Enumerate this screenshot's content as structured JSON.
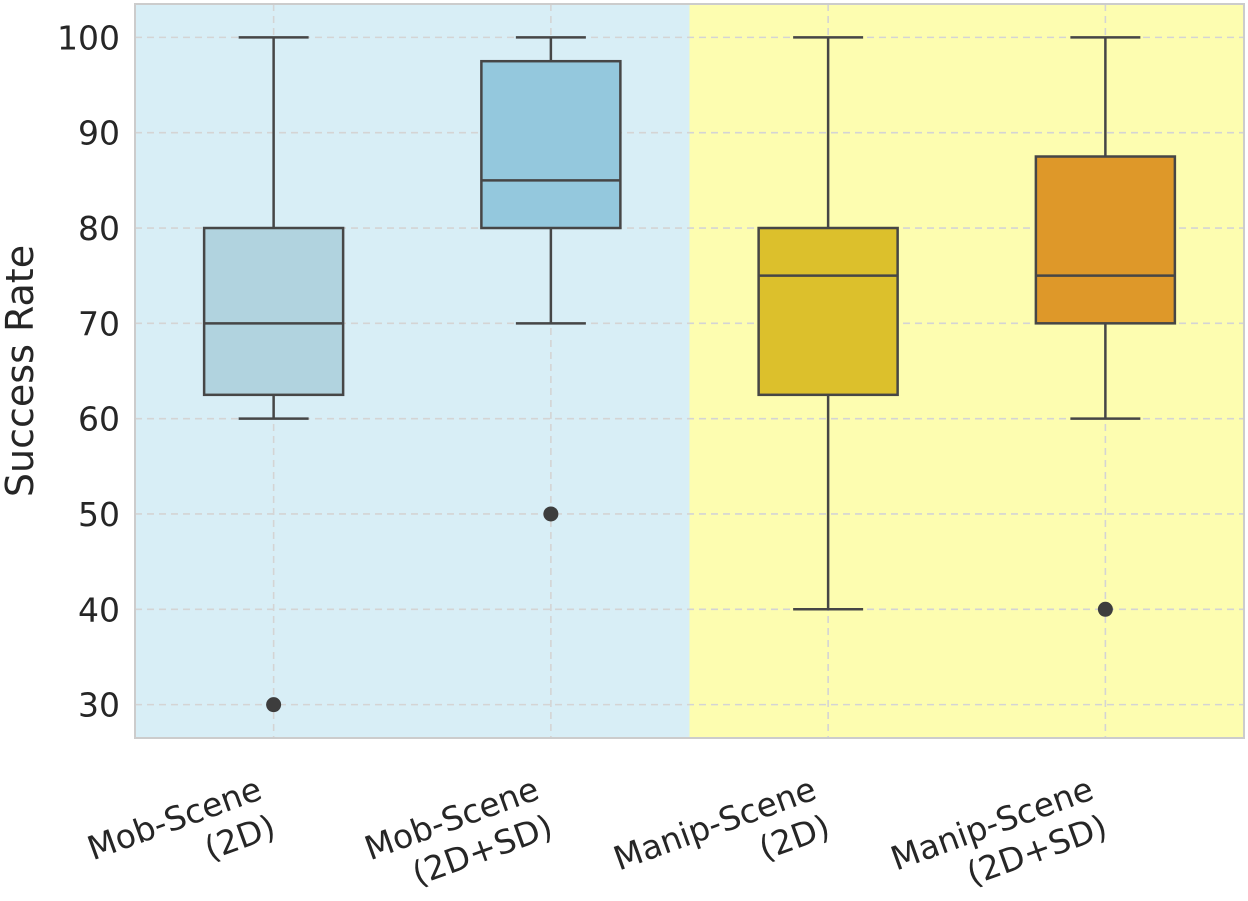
{
  "chart_data": {
    "type": "box",
    "title": "",
    "xlabel": "",
    "ylabel": "Success Rate",
    "ylim": [
      26.5,
      103.5
    ],
    "yticks": [
      30,
      40,
      50,
      60,
      70,
      80,
      90,
      100
    ],
    "grid": true,
    "categories": [
      {
        "line1": "Mob-Scene",
        "line2": "(2D)"
      },
      {
        "line1": "Mob-Scene",
        "line2": "(2D+SD)"
      },
      {
        "line1": "Manip-Scene",
        "line2": "(2D)"
      },
      {
        "line1": "Manip-Scene",
        "line2": "(2D+SD)"
      }
    ],
    "boxes": [
      {
        "whisker_low": 60,
        "q1": 62.5,
        "median": 70,
        "q3": 80,
        "whisker_high": 100,
        "outliers": [
          30
        ],
        "color": "#b1d3df"
      },
      {
        "whisker_low": 70,
        "q1": 80,
        "median": 85,
        "q3": 97.5,
        "whisker_high": 100,
        "outliers": [
          50
        ],
        "color": "#94c8dd"
      },
      {
        "whisker_low": 40,
        "q1": 62.5,
        "median": 75,
        "q3": 80,
        "whisker_high": 100,
        "outliers": [],
        "color": "#dcc02c"
      },
      {
        "whisker_low": 60,
        "q1": 70,
        "median": 75,
        "q3": 87.5,
        "whisker_high": 100,
        "outliers": [
          40
        ],
        "color": "#de9829"
      }
    ],
    "background_regions": [
      {
        "from_category": 0,
        "to_category": 1,
        "color": "#d8eef6"
      },
      {
        "from_category": 2,
        "to_category": 3,
        "color": "#fdfdb0"
      }
    ],
    "line_color": "#464646",
    "outlier_color": "#3d3d3d"
  }
}
